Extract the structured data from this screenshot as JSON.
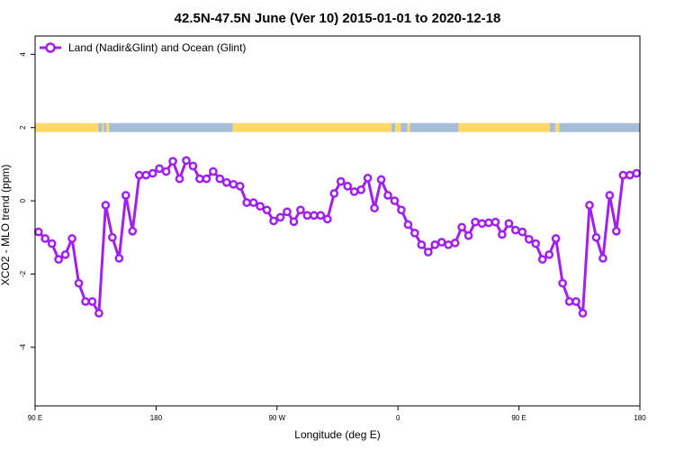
{
  "chart_data": {
    "type": "line",
    "title": "42.5N-47.5N June (Ver 10)   2015-01-01 to 2020-12-18",
    "xlabel": "Longitude (deg E)",
    "ylabel": "XCO2 - MLO trend (ppm)",
    "xlim": [
      90,
      540
    ],
    "ylim": [
      -5.6,
      4.5
    ],
    "x_ticks": [
      {
        "value": 90,
        "label": "90 E"
      },
      {
        "value": 180,
        "label": "180"
      },
      {
        "value": 270,
        "label": "90 W"
      },
      {
        "value": 360,
        "label": "0"
      },
      {
        "value": 450,
        "label": "90 E"
      },
      {
        "value": 540,
        "label": "180"
      }
    ],
    "y_ticks": [
      {
        "value": -4,
        "label": "-4"
      },
      {
        "value": -2,
        "label": "-2"
      },
      {
        "value": 0,
        "label": "0"
      },
      {
        "value": 2,
        "label": "2"
      },
      {
        "value": 4,
        "label": "4"
      }
    ],
    "grid": false,
    "legend": {
      "position": "top-left",
      "entries": [
        "Land (Nadir&Glint) and Ocean (Glint)"
      ]
    },
    "series_color": "#a020f0",
    "land_color": "#ffd966",
    "ocean_color": "#a7bcd9",
    "land_mask_y": 2,
    "land_mask": [
      [
        90,
        137,
        "land"
      ],
      [
        137,
        140,
        "ocean"
      ],
      [
        140,
        141,
        "land"
      ],
      [
        141,
        143,
        "ocean"
      ],
      [
        143,
        145,
        "land"
      ],
      [
        145,
        237,
        "ocean"
      ],
      [
        237,
        355,
        "land"
      ],
      [
        355,
        358,
        "ocean"
      ],
      [
        358,
        362,
        "land"
      ],
      [
        362,
        367,
        "ocean"
      ],
      [
        367,
        369,
        "land"
      ],
      [
        369,
        405,
        "ocean"
      ],
      [
        405,
        473,
        "land"
      ],
      [
        473,
        477,
        "ocean"
      ],
      [
        477,
        480,
        "land"
      ],
      [
        480,
        540,
        "ocean"
      ]
    ],
    "series": [
      {
        "x": [
          92.5,
          97.5,
          102.5,
          107.5,
          112.5,
          117.5,
          122.5,
          127.5,
          132.5,
          137.5,
          142.5,
          147.5,
          152.5,
          157.5,
          162.5,
          167.5,
          172.5,
          177.5,
          182.5,
          187.5,
          192.5,
          197.5,
          202.5,
          207.5,
          212.5,
          217.5,
          222.5,
          227.5,
          232.5,
          237.5,
          242.5,
          247.5,
          252.5,
          257.5,
          262.5,
          267.5,
          272.5,
          277.5,
          282.5,
          287.5,
          292.5,
          297.5,
          302.5,
          307.5,
          312.5,
          317.5,
          322.5,
          327.5,
          332.5,
          337.5,
          342.5,
          347.5,
          352.5,
          357.5,
          362.5,
          367.5,
          372.5,
          377.5,
          382.5,
          387.5,
          392.5,
          397.5,
          402.5,
          407.5,
          412.5,
          417.5,
          422.5,
          427.5,
          432.5,
          437.5,
          442.5,
          447.5,
          452.5,
          457.5,
          462.5,
          467.5,
          472.5,
          477.5,
          482.5,
          487.5,
          492.5,
          497.5,
          502.5,
          507.5,
          512.5,
          517.5,
          522.5,
          527.5,
          532.5,
          537.5
        ],
        "y": [
          -0.85,
          -1.03,
          -1.17,
          -1.6,
          -1.47,
          -1.03,
          -2.25,
          -2.75,
          -2.75,
          -3.07,
          -0.12,
          -1.0,
          -1.57,
          0.15,
          -0.83,
          0.7,
          0.7,
          0.75,
          0.88,
          0.8,
          1.08,
          0.6,
          1.1,
          0.95,
          0.6,
          0.6,
          0.8,
          0.6,
          0.5,
          0.45,
          0.4,
          -0.05,
          -0.05,
          -0.15,
          -0.25,
          -0.55,
          -0.45,
          -0.3,
          -0.57,
          -0.25,
          -0.4,
          -0.4,
          -0.4,
          -0.5,
          0.2,
          0.53,
          0.4,
          0.25,
          0.3,
          0.62,
          -0.2,
          0.58,
          0.15,
          0.0,
          -0.25,
          -0.65,
          -0.88,
          -1.2,
          -1.4,
          -1.2,
          -1.13,
          -1.2,
          -1.15,
          -0.72,
          -0.95,
          -0.58,
          -0.62,
          -0.6,
          -0.58,
          -0.92,
          -0.62,
          -0.8,
          -0.85,
          -1.05,
          -1.17,
          -1.6,
          -1.47,
          -1.03,
          -2.25,
          -2.75,
          -2.75,
          -3.07,
          -0.12,
          -1.0,
          -1.57,
          0.15,
          -0.83,
          0.7,
          0.7,
          0.75
        ]
      }
    ]
  }
}
